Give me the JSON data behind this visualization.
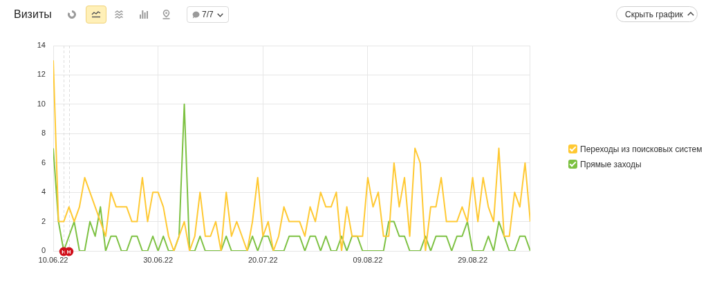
{
  "chart_data": {
    "type": "line",
    "title": "Визиты",
    "annotations": [
      "7/7",
      "Скрыть график"
    ],
    "x": [
      "2022-06-10",
      "2022-06-11",
      "2022-06-12",
      "2022-06-13",
      "2022-06-14",
      "2022-06-15",
      "2022-06-16",
      "2022-06-17",
      "2022-06-18",
      "2022-06-19",
      "2022-06-20",
      "2022-06-21",
      "2022-06-22",
      "2022-06-23",
      "2022-06-24",
      "2022-06-25",
      "2022-06-26",
      "2022-06-27",
      "2022-06-28",
      "2022-06-29",
      "2022-06-30",
      "2022-07-01",
      "2022-07-02",
      "2022-07-03",
      "2022-07-04",
      "2022-07-05",
      "2022-07-06",
      "2022-07-07",
      "2022-07-08",
      "2022-07-09",
      "2022-07-10",
      "2022-07-11",
      "2022-07-12",
      "2022-07-13",
      "2022-07-14",
      "2022-07-15",
      "2022-07-16",
      "2022-07-17",
      "2022-07-18",
      "2022-07-19",
      "2022-07-20",
      "2022-07-21",
      "2022-07-22",
      "2022-07-23",
      "2022-07-24",
      "2022-07-25",
      "2022-07-26",
      "2022-07-27",
      "2022-07-28",
      "2022-07-29",
      "2022-07-30",
      "2022-07-31",
      "2022-08-01",
      "2022-08-02",
      "2022-08-03",
      "2022-08-04",
      "2022-08-05",
      "2022-08-06",
      "2022-08-07",
      "2022-08-08",
      "2022-08-09",
      "2022-08-10",
      "2022-08-11",
      "2022-08-12",
      "2022-08-13",
      "2022-08-14",
      "2022-08-15",
      "2022-08-16",
      "2022-08-17",
      "2022-08-18",
      "2022-08-19",
      "2022-08-20",
      "2022-08-21",
      "2022-08-22",
      "2022-08-23",
      "2022-08-24",
      "2022-08-25",
      "2022-08-26",
      "2022-08-27",
      "2022-08-28",
      "2022-08-29",
      "2022-08-30",
      "2022-08-31",
      "2022-09-01",
      "2022-09-02",
      "2022-09-03",
      "2022-09-04",
      "2022-09-05",
      "2022-09-06",
      "2022-09-07",
      "2022-09-08",
      "2022-09-09"
    ],
    "series": [
      {
        "name": "Переходы из поисковых систем",
        "color": "#ffc933",
        "values": [
          13,
          2,
          2,
          3,
          2,
          3,
          5,
          4,
          3,
          2,
          1,
          4,
          3,
          3,
          3,
          2,
          2,
          5,
          2,
          4,
          4,
          3,
          1,
          0,
          1,
          2,
          0,
          1,
          4,
          1,
          1,
          2,
          0,
          4,
          1,
          2,
          1,
          0,
          2,
          5,
          1,
          2,
          0,
          1,
          3,
          2,
          2,
          2,
          1,
          3,
          2,
          4,
          3,
          3,
          4,
          0,
          3,
          1,
          1,
          1,
          5,
          3,
          4,
          1,
          1,
          6,
          3,
          5,
          1,
          7,
          6,
          0,
          3,
          3,
          5,
          2,
          2,
          2,
          3,
          2,
          5,
          2,
          5,
          3,
          2,
          7,
          1,
          1,
          4,
          3,
          6,
          2
        ]
      },
      {
        "name": "Прямые заходы",
        "color": "#7dc142",
        "values": [
          7,
          2,
          0,
          1,
          2,
          0,
          0,
          2,
          1,
          3,
          0,
          1,
          1,
          0,
          0,
          1,
          1,
          0,
          0,
          1,
          0,
          1,
          0,
          0,
          1,
          10,
          0,
          0,
          1,
          0,
          0,
          0,
          0,
          1,
          0,
          0,
          0,
          0,
          1,
          0,
          1,
          1,
          0,
          0,
          0,
          1,
          1,
          1,
          0,
          1,
          1,
          0,
          1,
          0,
          0,
          1,
          0,
          1,
          1,
          0,
          0,
          0,
          0,
          0,
          2,
          2,
          1,
          1,
          0,
          0,
          0,
          1,
          0,
          1,
          1,
          1,
          0,
          1,
          1,
          2,
          0,
          0,
          0,
          1,
          0,
          2,
          1,
          0,
          0,
          1,
          1,
          0
        ]
      }
    ],
    "xlim": [
      "2022-06-10",
      "2022-09-09"
    ],
    "xticks": [
      {
        "value": "2022-06-10",
        "label": "10.06.22"
      },
      {
        "value": "2022-06-30",
        "label": "30.06.22"
      },
      {
        "value": "2022-07-20",
        "label": "20.07.22"
      },
      {
        "value": "2022-08-09",
        "label": "09.08.22"
      },
      {
        "value": "2022-08-29",
        "label": "29.08.22"
      }
    ],
    "ylim": [
      0,
      14
    ],
    "yticks": [
      0,
      2,
      4,
      6,
      8,
      10,
      12,
      14
    ],
    "grid": true,
    "legend": "right",
    "ref_lines": [
      {
        "axis": "x",
        "value": "2022-06-12",
        "label": "Н",
        "color": "#dddddd",
        "line_style": "dashed"
      },
      {
        "axis": "x",
        "value": "2022-06-13",
        "label": "Н",
        "color": "#dddddd",
        "line_style": "dashed"
      }
    ]
  }
}
